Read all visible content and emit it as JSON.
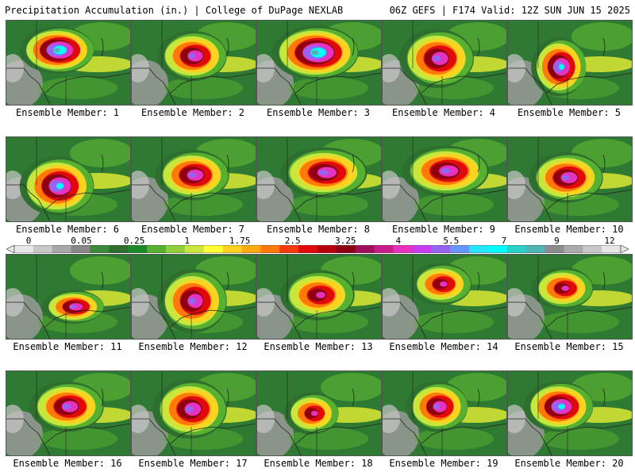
{
  "header": {
    "left": "Precipitation Accumulation (in.) | College of DuPage NEXLAB",
    "right": "06Z GEFS | F174 Valid: 12Z SUN JUN 15 2025"
  },
  "colors": {
    "scale": [
      "#e8e8e8",
      "#c8c8c8",
      "#a8a8a8",
      "#888888",
      "#3a8a3a",
      "#2e6e2e",
      "#1d8a2a",
      "#58b030",
      "#8fcf3a",
      "#c8e63c",
      "#ffff33",
      "#ffd21f",
      "#ffaa14",
      "#ff7a0a",
      "#f53b0a",
      "#e00a0a",
      "#b8000a",
      "#8c0012",
      "#a0105a",
      "#c81e8c",
      "#e632be",
      "#c83cf0",
      "#9664f0",
      "#6496ff",
      "#28e6ff",
      "#00ffff",
      "#28d2c8",
      "#50b4b4",
      "#8c8c8c",
      "#aaaaaa",
      "#c8c8c8",
      "#e6e6e6"
    ]
  },
  "scale_labels": [
    "0",
    "0.05",
    "0.25",
    "1",
    "1.75",
    "2.5",
    "3.25",
    "4",
    "5.5",
    "7",
    "9",
    "12"
  ],
  "panels": [
    {
      "label": "Ensemble Member: 1",
      "core": [
        [
          0.42,
          0.35,
          0.3,
          0.28,
          1.0
        ]
      ]
    },
    {
      "label": "Ensemble Member: 2",
      "core": [
        [
          0.5,
          0.42,
          0.28,
          0.3,
          0.85
        ]
      ]
    },
    {
      "label": "Ensemble Member: 3",
      "core": [
        [
          0.48,
          0.38,
          0.35,
          0.32,
          1.0
        ]
      ]
    },
    {
      "label": "Ensemble Member: 4",
      "core": [
        [
          0.45,
          0.45,
          0.3,
          0.35,
          0.85
        ]
      ]
    },
    {
      "label": "Ensemble Member: 5",
      "core": [
        [
          0.42,
          0.55,
          0.22,
          0.35,
          0.95
        ]
      ]
    },
    {
      "label": "Ensemble Member: 6",
      "core": [
        [
          0.42,
          0.58,
          0.3,
          0.35,
          0.95
        ]
      ]
    },
    {
      "label": "Ensemble Member: 7",
      "core": [
        [
          0.5,
          0.45,
          0.3,
          0.3,
          0.85
        ]
      ]
    },
    {
      "label": "Ensemble Member: 8",
      "core": [
        [
          0.55,
          0.42,
          0.35,
          0.3,
          0.85
        ]
      ]
    },
    {
      "label": "Ensemble Member: 9",
      "core": [
        [
          0.52,
          0.4,
          0.35,
          0.3,
          0.85
        ]
      ]
    },
    {
      "label": "Ensemble Member: 10",
      "core": [
        [
          0.48,
          0.48,
          0.3,
          0.3,
          0.85
        ]
      ]
    },
    {
      "label": "Ensemble Member: 11",
      "core": [
        [
          0.55,
          0.62,
          0.25,
          0.2,
          0.85
        ]
      ]
    },
    {
      "label": "Ensemble Member: 12",
      "core": [
        [
          0.5,
          0.55,
          0.28,
          0.38,
          0.85
        ]
      ]
    },
    {
      "label": "Ensemble Member: 13",
      "core": [
        [
          0.5,
          0.48,
          0.3,
          0.3,
          0.7
        ]
      ]
    },
    {
      "label": "Ensemble Member: 14",
      "core": [
        [
          0.48,
          0.35,
          0.25,
          0.25,
          0.75
        ]
      ]
    },
    {
      "label": "Ensemble Member: 15",
      "core": [
        [
          0.45,
          0.4,
          0.25,
          0.25,
          0.75
        ]
      ]
    },
    {
      "label": "Ensemble Member: 16",
      "core": [
        [
          0.5,
          0.42,
          0.3,
          0.3,
          0.8
        ]
      ]
    },
    {
      "label": "Ensemble Member: 17",
      "core": [
        [
          0.48,
          0.45,
          0.3,
          0.35,
          0.85
        ]
      ]
    },
    {
      "label": "Ensemble Member: 18",
      "core": [
        [
          0.45,
          0.5,
          0.22,
          0.25,
          0.75
        ]
      ]
    },
    {
      "label": "Ensemble Member: 19",
      "core": [
        [
          0.45,
          0.42,
          0.25,
          0.3,
          0.8
        ]
      ]
    },
    {
      "label": "Ensemble Member: 20",
      "core": [
        [
          0.42,
          0.42,
          0.28,
          0.3,
          0.95
        ]
      ]
    }
  ]
}
